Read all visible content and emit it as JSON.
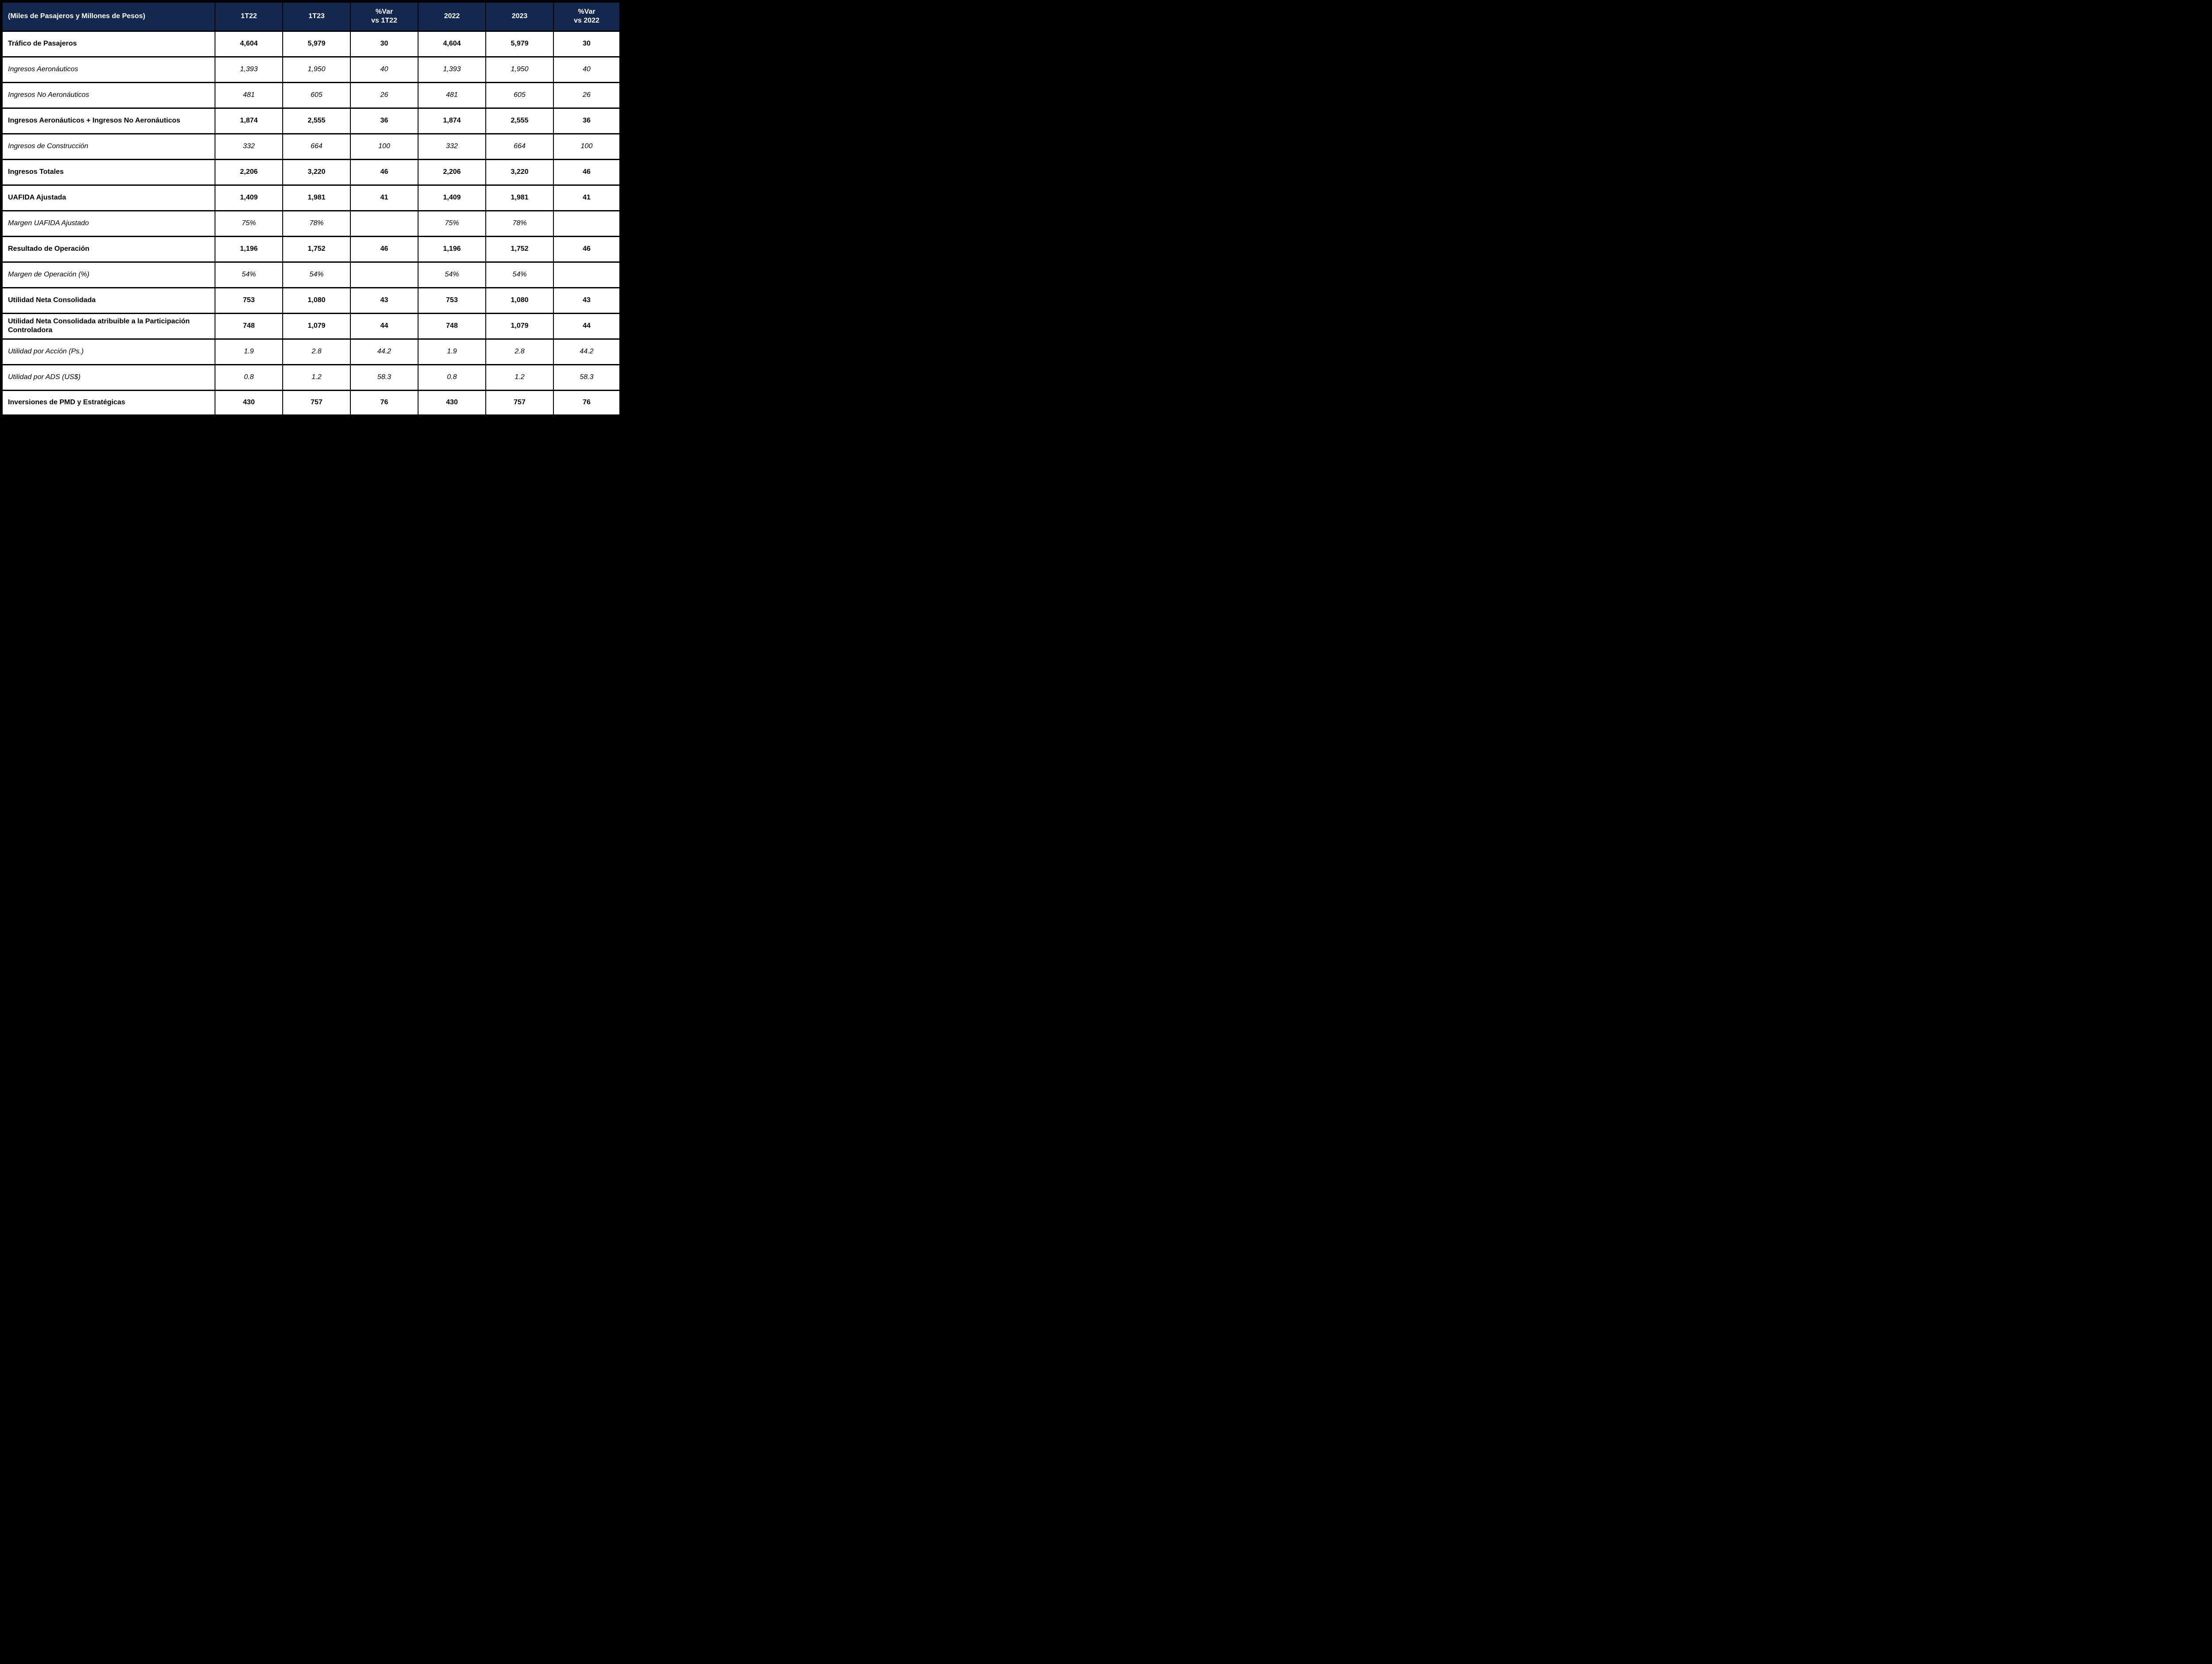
{
  "colors": {
    "header_bg": "#14274E",
    "header_text": "#FFFFFF",
    "grid": "#000000",
    "body_text": "#000000",
    "row_bg": "#FFFFFF"
  },
  "table": {
    "unit_label": "(Miles de Pasajeros y Millones de Pesos)",
    "columns": [
      "1T22",
      "1T23",
      "%Var\nvs 1T22",
      "2022",
      "2023",
      "%Var\nvs 2022"
    ],
    "rows": [
      {
        "label": "Tráfico de Pasajeros",
        "style": "bold",
        "values": [
          "4,604",
          "5,979",
          "30",
          "4,604",
          "5,979",
          "30"
        ]
      },
      {
        "label": "Ingresos Aeronáuticos",
        "style": "italic",
        "values": [
          "1,393",
          "1,950",
          "40",
          "1,393",
          "1,950",
          "40"
        ]
      },
      {
        "label": "Ingresos No Aeronáuticos",
        "style": "italic",
        "values": [
          "481",
          "605",
          "26",
          "481",
          "605",
          "26"
        ]
      },
      {
        "label": "Ingresos Aeronáuticos + Ingresos No Aeronáuticos",
        "style": "bold",
        "values": [
          "1,874",
          "2,555",
          "36",
          "1,874",
          "2,555",
          "36"
        ]
      },
      {
        "label": "Ingresos de Construcción",
        "style": "italic",
        "values": [
          "332",
          "664",
          "100",
          "332",
          "664",
          "100"
        ]
      },
      {
        "label": "Ingresos Totales",
        "style": "bold",
        "values": [
          "2,206",
          "3,220",
          "46",
          "2,206",
          "3,220",
          "46"
        ]
      },
      {
        "label": "UAFIDA Ajustada",
        "style": "bold",
        "values": [
          "1,409",
          "1,981",
          "41",
          "1,409",
          "1,981",
          "41"
        ]
      },
      {
        "label": "Margen UAFIDA Ajustado",
        "style": "italic",
        "values": [
          "75%",
          "78%",
          "",
          "75%",
          "78%",
          ""
        ]
      },
      {
        "label": "Resultado de Operación",
        "style": "bold",
        "values": [
          "1,196",
          "1,752",
          "46",
          "1,196",
          "1,752",
          "46"
        ]
      },
      {
        "label": "Margen de Operación (%)",
        "style": "italic",
        "values": [
          "54%",
          "54%",
          "",
          "54%",
          "54%",
          ""
        ]
      },
      {
        "label": "Utilidad Neta Consolidada",
        "style": "bold",
        "values": [
          "753",
          "1,080",
          "43",
          "753",
          "1,080",
          "43"
        ]
      },
      {
        "label": "Utilidad Neta Consolidada atribuible a la Participación Controladora",
        "style": "bold",
        "values": [
          "748",
          "1,079",
          "44",
          "748",
          "1,079",
          "44"
        ]
      },
      {
        "label": "Utilidad por Acción (Ps.)",
        "style": "italic",
        "values": [
          "1.9",
          "2.8",
          "44.2",
          "1.9",
          "2.8",
          "44.2"
        ]
      },
      {
        "label": "Utilidad por ADS (US$)",
        "style": "italic",
        "values": [
          "0.8",
          "1.2",
          "58.3",
          "0.8",
          "1.2",
          "58.3"
        ]
      },
      {
        "label": "Inversiones de PMD y Estratégicas",
        "style": "bold",
        "values": [
          "430",
          "757",
          "76",
          "430",
          "757",
          "76"
        ]
      }
    ]
  }
}
